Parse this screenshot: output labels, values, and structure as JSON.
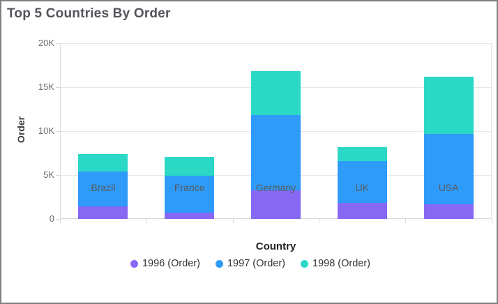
{
  "chart_data": {
    "type": "bar",
    "stacked": true,
    "title": "Top 5 Countries By Order",
    "xlabel": "Country",
    "ylabel": "Order",
    "categories": [
      "Brazil",
      "France",
      "Germany",
      "UK",
      "USA"
    ],
    "series": [
      {
        "name": "1996 (Order)",
        "color": "#8668F2",
        "values": [
          1400,
          700,
          3250,
          1850,
          1700
        ]
      },
      {
        "name": "1997 (Order)",
        "color": "#2E9BFB",
        "values": [
          4000,
          4200,
          8550,
          4750,
          8000
        ]
      },
      {
        "name": "1998 (Order)",
        "color": "#2BD8C5",
        "values": [
          2000,
          2200,
          5000,
          1600,
          6500
        ]
      }
    ],
    "totals": [
      7400,
      7100,
      16800,
      8200,
      16200
    ],
    "ylim": [
      0,
      20000
    ],
    "ytick_step": 5000,
    "ytick_labels": [
      "0",
      "5K",
      "10K",
      "15K",
      "20K"
    ],
    "grid": true,
    "legend_position": "bottom"
  },
  "style": {
    "grid_color": "#e6e6e6",
    "axis_color": "#d9d9d9",
    "tick_text_color": "#6e6e6e",
    "title_color": "#54545c",
    "border_color": "#7f7f7f"
  }
}
